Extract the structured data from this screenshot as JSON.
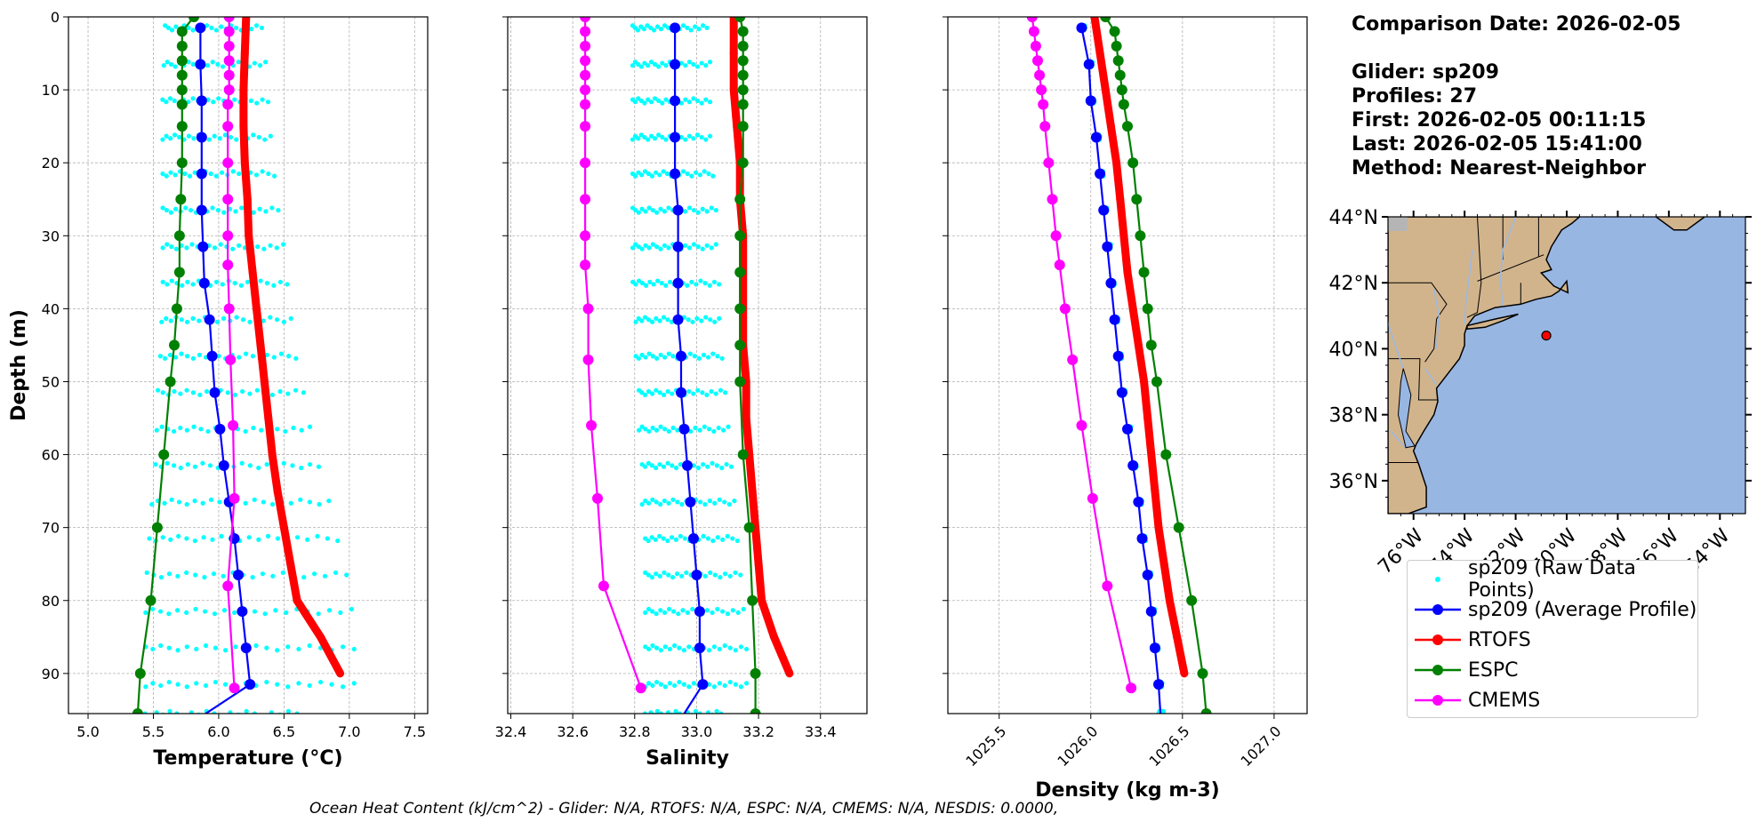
{
  "chart_data": [
    {
      "type": "line",
      "xlabel": "Temperature (°C)",
      "ylabel": "Depth (m)",
      "xlim": [
        4.85,
        7.6
      ],
      "ylim": [
        95.5,
        0
      ],
      "x_ticks": [
        5.0,
        5.5,
        6.0,
        6.5,
        7.0,
        7.5
      ],
      "y_ticks": [
        0,
        10,
        20,
        30,
        40,
        50,
        60,
        70,
        80,
        90
      ],
      "grid": true,
      "series": [
        {
          "name": "sp209 (Average Profile)",
          "depth": [
            1.5,
            6.5,
            11.5,
            16.5,
            21.5,
            26.5,
            31.5,
            36.5,
            41.5,
            46.5,
            51.5,
            56.5,
            61.5,
            66.5,
            71.5,
            76.5,
            81.5,
            86.5,
            91.5,
            95.5
          ],
          "values": [
            5.86,
            5.86,
            5.87,
            5.87,
            5.87,
            5.87,
            5.88,
            5.89,
            5.93,
            5.95,
            5.97,
            6.01,
            6.04,
            6.08,
            6.12,
            6.15,
            6.18,
            6.21,
            6.24,
            5.9
          ]
        },
        {
          "name": "RTOFS",
          "depth": [
            0,
            5,
            10,
            15,
            20,
            25,
            30,
            35,
            40,
            45,
            50,
            55,
            60,
            65,
            70,
            75,
            80,
            85,
            90
          ],
          "values": [
            6.21,
            6.2,
            6.19,
            6.19,
            6.2,
            6.22,
            6.23,
            6.26,
            6.29,
            6.32,
            6.35,
            6.38,
            6.41,
            6.45,
            6.5,
            6.55,
            6.6,
            6.78,
            6.93
          ]
        },
        {
          "name": "ESPC",
          "depth": [
            0,
            2,
            4,
            6,
            8,
            10,
            12,
            15,
            20,
            25,
            30,
            35,
            40,
            45,
            50,
            60,
            70,
            80,
            90,
            95.5
          ],
          "values": [
            5.81,
            5.72,
            5.72,
            5.72,
            5.72,
            5.72,
            5.72,
            5.72,
            5.72,
            5.71,
            5.7,
            5.7,
            5.68,
            5.66,
            5.63,
            5.58,
            5.53,
            5.48,
            5.4,
            5.38
          ]
        },
        {
          "name": "CMEMS",
          "depth": [
            0,
            2,
            4,
            6,
            8,
            10,
            12,
            15,
            20,
            25,
            30,
            34,
            40,
            47,
            56,
            66,
            78,
            92
          ],
          "values": [
            6.08,
            6.08,
            6.08,
            6.08,
            6.08,
            6.08,
            6.07,
            6.07,
            6.07,
            6.07,
            6.07,
            6.07,
            6.08,
            6.09,
            6.11,
            6.12,
            6.07,
            6.12
          ]
        }
      ],
      "raw_points": {
        "name": "sp209 (Raw Data Points)",
        "min": [
          5.58,
          5.57,
          5.56,
          5.56,
          5.56,
          5.56,
          5.56,
          5.56,
          5.55,
          5.54,
          5.52,
          5.51,
          5.5,
          5.47,
          5.45,
          5.43,
          5.42,
          5.42,
          5.42,
          5.42
        ],
        "max": [
          6.35,
          6.38,
          6.4,
          6.42,
          6.45,
          6.48,
          6.52,
          6.55,
          6.58,
          6.62,
          6.68,
          6.73,
          6.8,
          6.88,
          6.95,
          7.02,
          7.06,
          7.08,
          7.08,
          6.7
        ]
      }
    },
    {
      "type": "line",
      "xlabel": "Salinity",
      "xlim": [
        32.39,
        33.55
      ],
      "ylim": [
        95.5,
        0
      ],
      "x_ticks": [
        32.4,
        32.6,
        32.8,
        33.0,
        33.2,
        33.4
      ],
      "grid": true,
      "series": [
        {
          "name": "sp209 (Average Profile)",
          "depth": [
            1.5,
            6.5,
            11.5,
            16.5,
            21.5,
            26.5,
            31.5,
            36.5,
            41.5,
            46.5,
            51.5,
            56.5,
            61.5,
            66.5,
            71.5,
            76.5,
            81.5,
            86.5,
            91.5,
            95.5
          ],
          "values": [
            32.93,
            32.93,
            32.93,
            32.93,
            32.93,
            32.94,
            32.94,
            32.94,
            32.94,
            32.95,
            32.95,
            32.96,
            32.97,
            32.98,
            32.99,
            33.0,
            33.01,
            33.01,
            33.02,
            32.96
          ]
        },
        {
          "name": "RTOFS",
          "depth": [
            0,
            5,
            10,
            15,
            20,
            25,
            30,
            35,
            40,
            45,
            50,
            55,
            60,
            65,
            70,
            75,
            80,
            85,
            90
          ],
          "values": [
            33.12,
            33.12,
            33.12,
            33.13,
            33.14,
            33.14,
            33.15,
            33.15,
            33.15,
            33.15,
            33.16,
            33.16,
            33.17,
            33.18,
            33.19,
            33.2,
            33.21,
            33.25,
            33.3
          ]
        },
        {
          "name": "ESPC",
          "depth": [
            0,
            2,
            4,
            6,
            8,
            10,
            12,
            15,
            20,
            25,
            30,
            35,
            40,
            45,
            50,
            60,
            70,
            80,
            90,
            95.5
          ],
          "values": [
            33.14,
            33.15,
            33.15,
            33.15,
            33.15,
            33.15,
            33.15,
            33.15,
            33.15,
            33.14,
            33.14,
            33.14,
            33.14,
            33.14,
            33.14,
            33.15,
            33.17,
            33.18,
            33.19,
            33.19
          ]
        },
        {
          "name": "CMEMS",
          "depth": [
            0,
            2,
            4,
            6,
            8,
            10,
            12,
            15,
            20,
            25,
            30,
            34,
            40,
            47,
            56,
            66,
            78,
            92
          ],
          "values": [
            32.64,
            32.64,
            32.64,
            32.64,
            32.64,
            32.64,
            32.64,
            32.64,
            32.64,
            32.64,
            32.64,
            32.64,
            32.65,
            32.65,
            32.66,
            32.68,
            32.7,
            32.82
          ]
        }
      ],
      "raw_points": {
        "name": "sp209 (Raw Data Points)",
        "min": [
          32.79,
          32.79,
          32.79,
          32.79,
          32.79,
          32.79,
          32.79,
          32.79,
          32.8,
          32.8,
          32.81,
          32.81,
          32.82,
          32.82,
          32.83,
          32.83,
          32.83,
          32.83,
          32.83,
          32.83
        ],
        "max": [
          33.04,
          33.05,
          33.05,
          33.05,
          33.06,
          33.07,
          33.07,
          33.08,
          33.08,
          33.09,
          33.1,
          33.11,
          33.12,
          33.13,
          33.14,
          33.15,
          33.16,
          33.17,
          33.17,
          33.1
        ]
      }
    },
    {
      "type": "line",
      "xlabel": "Density (kg m-3)",
      "xlim": [
        1025.22,
        1027.18
      ],
      "ylim": [
        95.5,
        0
      ],
      "x_ticks": [
        1025.5,
        1026.0,
        1026.5,
        1027.0
      ],
      "grid": true,
      "series": [
        {
          "name": "sp209 (Average Profile)",
          "depth": [
            1.5,
            6.5,
            11.5,
            16.5,
            21.5,
            26.5,
            31.5,
            36.5,
            41.5,
            46.5,
            51.5,
            56.5,
            61.5,
            66.5,
            71.5,
            76.5,
            81.5,
            86.5,
            91.5,
            95.5
          ],
          "values": [
            1025.95,
            1025.99,
            1026.0,
            1026.03,
            1026.05,
            1026.07,
            1026.09,
            1026.11,
            1026.13,
            1026.15,
            1026.17,
            1026.2,
            1026.23,
            1026.26,
            1026.28,
            1026.31,
            1026.33,
            1026.35,
            1026.37,
            1026.38
          ]
        },
        {
          "name": "RTOFS",
          "depth": [
            0,
            5,
            10,
            15,
            20,
            25,
            30,
            35,
            40,
            45,
            50,
            55,
            60,
            65,
            70,
            75,
            80,
            85,
            90
          ],
          "values": [
            1026.02,
            1026.05,
            1026.08,
            1026.11,
            1026.14,
            1026.16,
            1026.18,
            1026.2,
            1026.23,
            1026.26,
            1026.29,
            1026.31,
            1026.33,
            1026.35,
            1026.37,
            1026.4,
            1026.43,
            1026.47,
            1026.51
          ]
        },
        {
          "name": "ESPC",
          "depth": [
            0,
            2,
            4,
            6,
            8,
            10,
            12,
            15,
            20,
            25,
            30,
            35,
            40,
            45,
            50,
            60,
            70,
            80,
            90,
            95.5
          ],
          "values": [
            1026.08,
            1026.13,
            1026.14,
            1026.15,
            1026.16,
            1026.17,
            1026.18,
            1026.2,
            1026.23,
            1026.25,
            1026.27,
            1026.29,
            1026.31,
            1026.33,
            1026.36,
            1026.41,
            1026.48,
            1026.55,
            1026.61,
            1026.63
          ]
        },
        {
          "name": "CMEMS",
          "depth": [
            0,
            2,
            4,
            6,
            8,
            10,
            12,
            15,
            20,
            25,
            30,
            34,
            40,
            47,
            56,
            66,
            78,
            92
          ],
          "values": [
            1025.68,
            1025.69,
            1025.7,
            1025.71,
            1025.72,
            1025.73,
            1025.74,
            1025.75,
            1025.77,
            1025.79,
            1025.81,
            1025.83,
            1025.86,
            1025.9,
            1025.95,
            1026.01,
            1026.09,
            1026.22
          ]
        }
      ],
      "raw_points": {
        "name": "sp209 (Raw Data Points)",
        "min": [
          1025.94,
          1025.98,
          1025.99,
          1026.02,
          1026.04,
          1026.06,
          1026.08,
          1026.1,
          1026.12,
          1026.14,
          1026.16,
          1026.19,
          1026.22,
          1026.25,
          1026.27,
          1026.3,
          1026.32,
          1026.34,
          1026.36,
          1026.37
        ],
        "max": [
          1025.97,
          1026.01,
          1026.02,
          1026.05,
          1026.07,
          1026.09,
          1026.11,
          1026.13,
          1026.15,
          1026.17,
          1026.19,
          1026.22,
          1026.25,
          1026.28,
          1026.3,
          1026.33,
          1026.35,
          1026.37,
          1026.39,
          1026.4
        ]
      }
    },
    {
      "type": "map",
      "lat_ticks": [
        "44°N",
        "42°N",
        "40°N",
        "38°N",
        "36°N"
      ],
      "lon_ticks": [
        "76°W",
        "74°W",
        "72°W",
        "70°W",
        "68°W",
        "66°W",
        "64°W"
      ],
      "extent": {
        "lon": [
          -77,
          -63
        ],
        "lat": [
          35,
          44
        ]
      },
      "marker": {
        "lon": -70.8,
        "lat": 40.4
      },
      "colors": {
        "land": "#d2b48c",
        "ocean": "#98b6e2",
        "marker": "#ff0000"
      }
    }
  ],
  "info": {
    "line1": "Comparison Date: 2026-02-05",
    "line2": "Glider: sp209",
    "line3": "Profiles: 27",
    "line4": "First: 2026-02-05 00:11:15",
    "line5": "Last: 2026-02-05 15:41:00",
    "line6": "Method: Nearest-Neighbor"
  },
  "legend": [
    {
      "label": "sp209 (Raw Data Points)",
      "color": "#00ffff",
      "style": "dot"
    },
    {
      "label": "sp209 (Average Profile)",
      "color": "#0000ff",
      "style": "line-marker"
    },
    {
      "label": "RTOFS",
      "color": "#ff0000",
      "style": "line-marker"
    },
    {
      "label": "ESPC",
      "color": "#008000",
      "style": "line-marker"
    },
    {
      "label": "CMEMS",
      "color": "#ff00ff",
      "style": "line-marker"
    }
  ],
  "footer": "Ocean Heat Content (kJ/cm^2) - Glider: N/A,  RTOFS: N/A,  ESPC: N/A,  CMEMS: N/A,  NESDIS: 0.0000,"
}
